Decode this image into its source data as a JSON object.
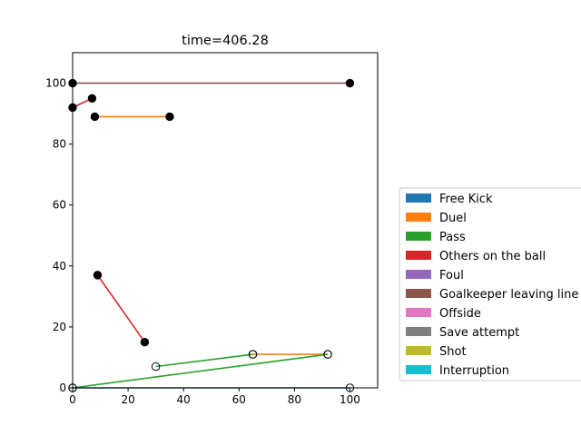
{
  "chart_data": {
    "type": "line",
    "title": "time=406.28",
    "xlabel": "",
    "ylabel": "",
    "xlim": [
      0,
      110
    ],
    "ylim": [
      0,
      110
    ],
    "xticks": [
      0,
      20,
      40,
      60,
      80,
      100
    ],
    "yticks": [
      0,
      20,
      40,
      60,
      80,
      100
    ],
    "grid": false,
    "legend_position": "right",
    "legend": [
      {
        "name": "Free Kick",
        "color": "#1f77b4"
      },
      {
        "name": "Duel",
        "color": "#ff7f0e"
      },
      {
        "name": "Pass",
        "color": "#2ca02c"
      },
      {
        "name": "Others on the ball",
        "color": "#d62728"
      },
      {
        "name": "Foul",
        "color": "#9467bd"
      },
      {
        "name": "Goalkeeper leaving line",
        "color": "#8c564b"
      },
      {
        "name": "Offside",
        "color": "#e377c2"
      },
      {
        "name": "Save attempt",
        "color": "#7f7f7f"
      },
      {
        "name": "Shot",
        "color": "#bcbd22"
      },
      {
        "name": "Interruption",
        "color": "#17becf"
      }
    ],
    "segments": [
      {
        "event": "Goalkeeper leaving line",
        "color": "#8c564b",
        "start": [
          0,
          100
        ],
        "end": [
          100,
          100
        ],
        "marker": "filled"
      },
      {
        "event": "Others on the ball",
        "color": "#d62728",
        "start": [
          0,
          92
        ],
        "end": [
          7,
          95
        ],
        "marker": "filled"
      },
      {
        "event": "Duel",
        "color": "#ff7f0e",
        "start": [
          8,
          89
        ],
        "end": [
          35,
          89
        ],
        "marker": "filled"
      },
      {
        "event": "Others on the ball",
        "color": "#d62728",
        "start": [
          9,
          37
        ],
        "end": [
          26,
          15
        ],
        "marker": "filled"
      },
      {
        "event": "Pass",
        "color": "#2ca02c",
        "start": [
          30,
          7
        ],
        "end": [
          65,
          11
        ],
        "marker": "open"
      },
      {
        "event": "Duel",
        "color": "#ff7f0e",
        "start": [
          65,
          11
        ],
        "end": [
          92,
          11
        ],
        "marker": "open"
      },
      {
        "event": "Pass",
        "color": "#2ca02c",
        "start": [
          0,
          0
        ],
        "end": [
          92,
          11
        ],
        "marker": "open"
      },
      {
        "event": "Free Kick",
        "color": "#1f77b4",
        "start": [
          0,
          0
        ],
        "end": [
          100,
          0
        ],
        "marker": "open"
      }
    ]
  }
}
